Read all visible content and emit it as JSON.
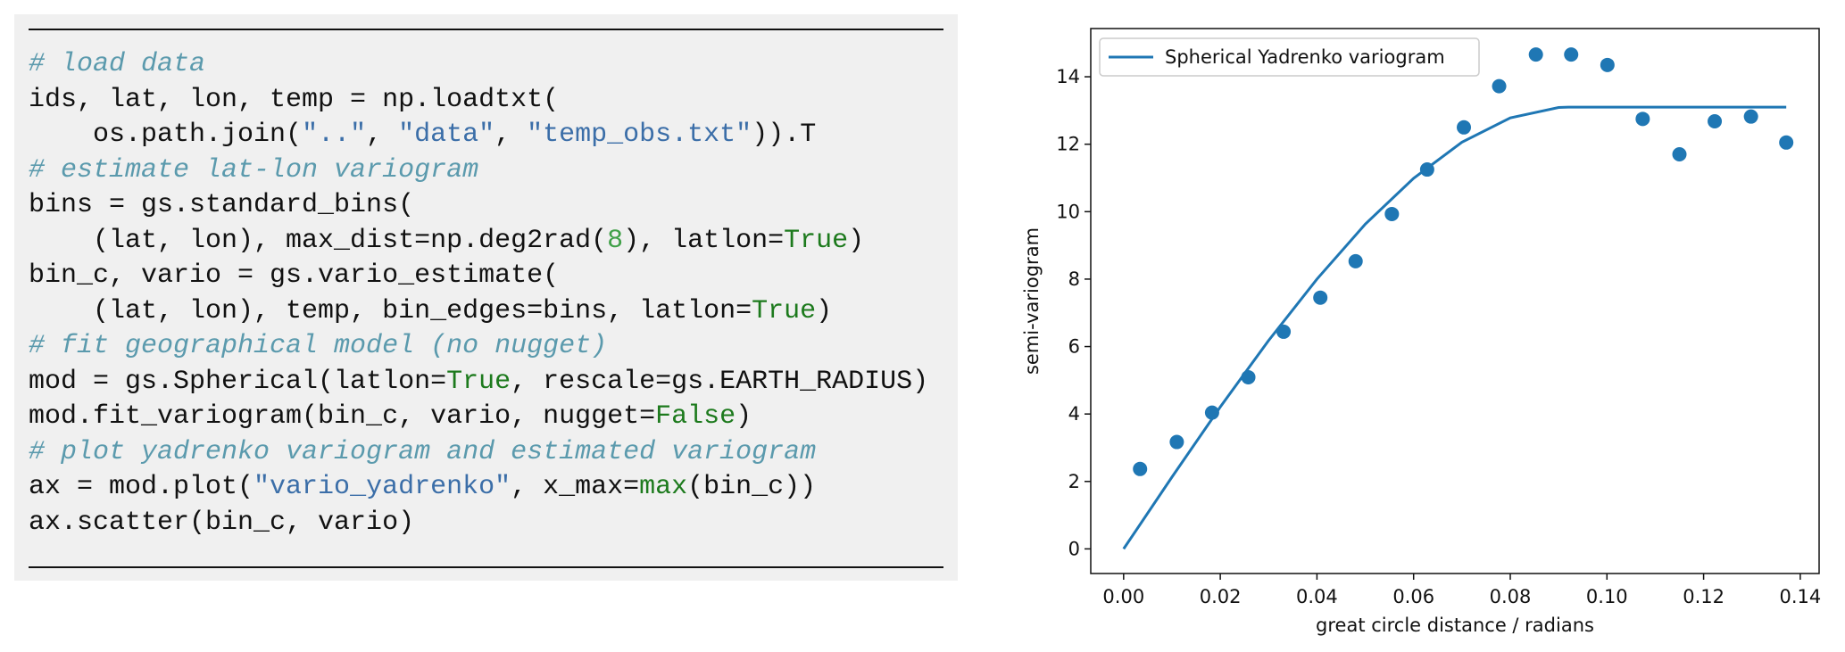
{
  "code": {
    "lines": [
      [
        {
          "text": "# load data",
          "color": "#5b9aad",
          "italic": true
        }
      ],
      [
        {
          "text": "ids, lat, lon, temp = np.loadtxt(",
          "color": "#111111"
        }
      ],
      [
        {
          "text": "    os.path.join(",
          "color": "#111111"
        },
        {
          "text": "\"..\"",
          "color": "#3b6ea8"
        },
        {
          "text": ", ",
          "color": "#111111"
        },
        {
          "text": "\"data\"",
          "color": "#3b6ea8"
        },
        {
          "text": ", ",
          "color": "#111111"
        },
        {
          "text": "\"temp_obs.txt\"",
          "color": "#3b6ea8"
        },
        {
          "text": ")).T",
          "color": "#111111"
        }
      ],
      [
        {
          "text": "# estimate lat-lon variogram",
          "color": "#5b9aad",
          "italic": true
        }
      ],
      [
        {
          "text": "bins = gs.standard_bins(",
          "color": "#111111"
        }
      ],
      [
        {
          "text": "    (lat, lon), max_dist=np.deg2rad(",
          "color": "#111111"
        },
        {
          "text": "8",
          "color": "#40a048"
        },
        {
          "text": "), latlon=",
          "color": "#111111"
        },
        {
          "text": "True",
          "color": "#1d7a1d"
        },
        {
          "text": ")",
          "color": "#111111"
        }
      ],
      [
        {
          "text": "bin_c, vario = gs.vario_estimate(",
          "color": "#111111"
        }
      ],
      [
        {
          "text": "    (lat, lon), temp, bin_edges=bins, latlon=",
          "color": "#111111"
        },
        {
          "text": "True",
          "color": "#1d7a1d"
        },
        {
          "text": ")",
          "color": "#111111"
        }
      ],
      [
        {
          "text": "# fit geographical model (no nugget)",
          "color": "#5b9aad",
          "italic": true
        }
      ],
      [
        {
          "text": "mod = gs.Spherical(latlon=",
          "color": "#111111"
        },
        {
          "text": "True",
          "color": "#1d7a1d"
        },
        {
          "text": ", rescale=gs.EARTH_RADIUS)",
          "color": "#111111"
        }
      ],
      [
        {
          "text": "mod.fit_variogram(bin_c, vario, nugget=",
          "color": "#111111"
        },
        {
          "text": "False",
          "color": "#1d7a1d"
        },
        {
          "text": ")",
          "color": "#111111"
        }
      ],
      [
        {
          "text": "# plot yadrenko variogram and estimated variogram",
          "color": "#5b9aad",
          "italic": true
        }
      ],
      [
        {
          "text": "ax = mod.plot(",
          "color": "#111111"
        },
        {
          "text": "\"vario_yadrenko\"",
          "color": "#3b6ea8"
        },
        {
          "text": ", x_max=",
          "color": "#111111"
        },
        {
          "text": "max",
          "color": "#1d7a1d"
        },
        {
          "text": "(bin_c))",
          "color": "#111111"
        }
      ],
      [
        {
          "text": "ax.scatter(bin_c, vario)",
          "color": "#111111"
        }
      ]
    ]
  },
  "chart_data": {
    "type": "line+scatter",
    "xlabel": "great circle distance / radians",
    "ylabel": "semi-variogram",
    "xlim": [
      -0.0068,
      0.1439
    ],
    "ylim": [
      -0.73,
      15.43
    ],
    "xticks": [
      {
        "value": 0,
        "label": "0.00"
      },
      {
        "value": 0.02,
        "label": "0.02"
      },
      {
        "value": 0.04,
        "label": "0.04"
      },
      {
        "value": 0.06,
        "label": "0.06"
      },
      {
        "value": 0.08,
        "label": "0.08"
      },
      {
        "value": 0.1,
        "label": "0.10"
      },
      {
        "value": 0.12,
        "label": "0.12"
      },
      {
        "value": 0.14,
        "label": "0.14"
      }
    ],
    "yticks": [
      0,
      2,
      4,
      6,
      8,
      10,
      12,
      14
    ],
    "legend": "upper left",
    "series": [
      {
        "name": "Spherical Yadrenko variogram",
        "kind": "line",
        "color": "#1f77b4",
        "x": [
          0,
          0.01,
          0.02,
          0.03,
          0.04,
          0.05,
          0.06,
          0.07,
          0.08,
          0.09,
          0.092,
          0.1371
        ],
        "values": [
          0,
          2.13,
          4.21,
          6.18,
          8.0,
          9.63,
          10.99,
          12.06,
          12.78,
          13.09,
          13.1,
          13.1
        ]
      },
      {
        "kind": "scatter",
        "color": "#1f77b4",
        "x": [
          0.0034,
          0.011,
          0.0183,
          0.0258,
          0.0331,
          0.0407,
          0.048,
          0.0555,
          0.0628,
          0.0704,
          0.0777,
          0.0853,
          0.0926,
          0.1001,
          0.1074,
          0.115,
          0.1223,
          0.1298,
          0.1371
        ],
        "values": [
          2.37,
          3.17,
          4.04,
          5.09,
          6.44,
          7.45,
          8.53,
          9.93,
          11.25,
          12.5,
          13.72,
          14.66,
          14.66,
          14.35,
          12.75,
          11.7,
          12.68,
          12.82,
          12.05
        ]
      }
    ]
  }
}
